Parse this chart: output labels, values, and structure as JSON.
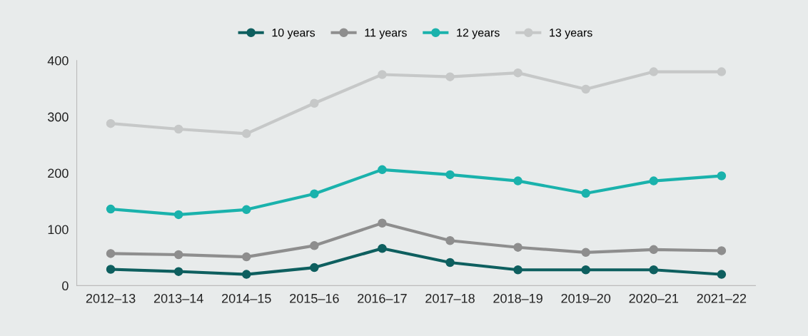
{
  "chart_data": {
    "type": "line",
    "categories": [
      "2012–13",
      "2013–14",
      "2014–15",
      "2015–16",
      "2016–17",
      "2017–18",
      "2018–19",
      "2019–20",
      "2020–21",
      "2021–22"
    ],
    "series": [
      {
        "name": "10 years",
        "color": "#0e5f5f",
        "values": [
          29,
          25,
          20,
          32,
          66,
          41,
          28,
          28,
          28,
          20
        ]
      },
      {
        "name": "11 years",
        "color": "#8e8e8e",
        "values": [
          57,
          55,
          51,
          71,
          111,
          80,
          68,
          59,
          64,
          62
        ]
      },
      {
        "name": "12 years",
        "color": "#1ab2ac",
        "values": [
          136,
          126,
          135,
          163,
          206,
          197,
          186,
          164,
          186,
          195
        ]
      },
      {
        "name": "13 years",
        "color": "#c6c8c8",
        "values": [
          288,
          278,
          270,
          324,
          375,
          371,
          378,
          349,
          380,
          380
        ]
      }
    ],
    "ylim": [
      0,
      400
    ],
    "yticks": [
      0,
      100,
      200,
      300,
      400
    ],
    "grid": false,
    "legend": "top",
    "marker": "circle",
    "line_style": "solid"
  }
}
